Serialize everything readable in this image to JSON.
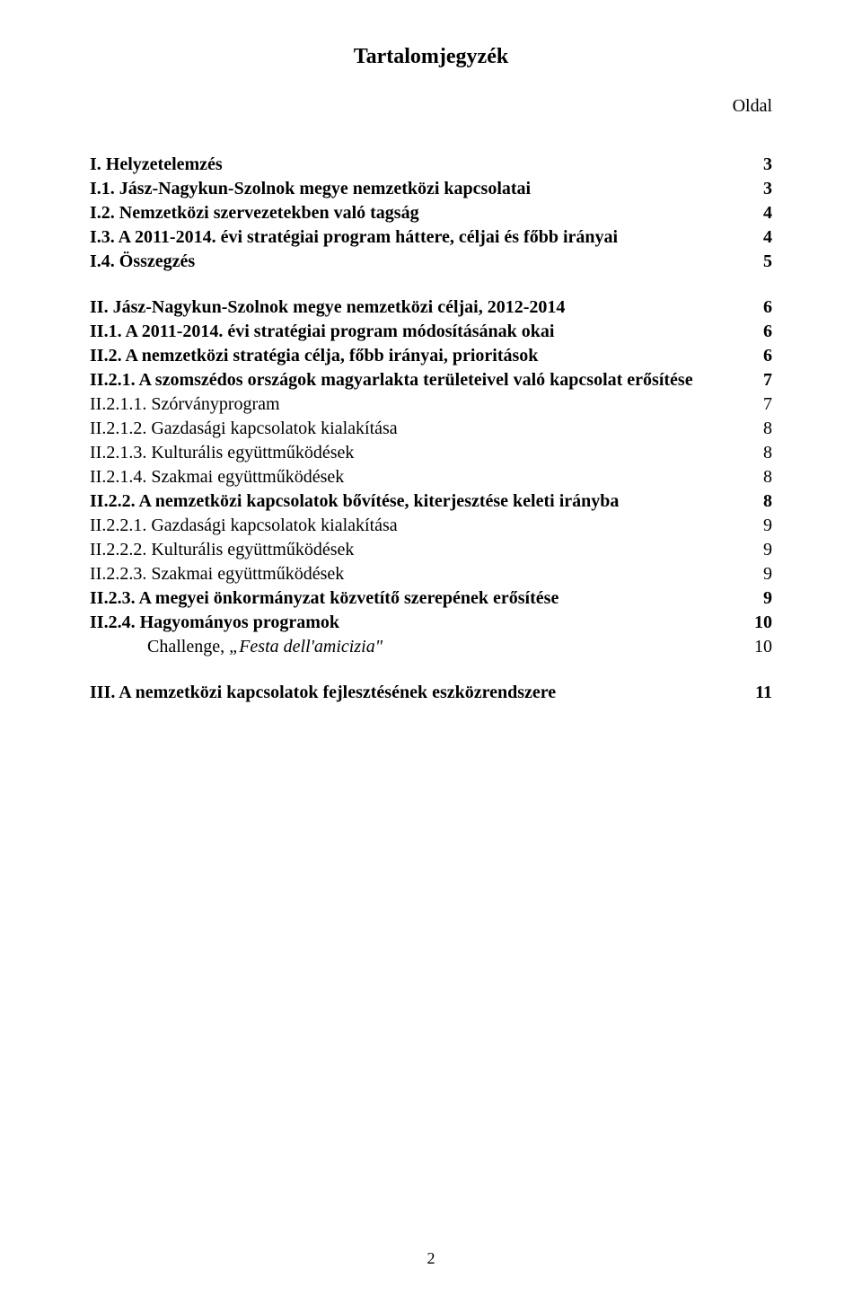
{
  "title": "Tartalomjegyzék",
  "column_header": "Oldal",
  "page_number": "2",
  "entries": [
    {
      "label": "I. Helyzetelemzés",
      "page": "3",
      "bold": true,
      "italic": false,
      "indent": 0
    },
    {
      "label": "I.1. Jász-Nagykun-Szolnok megye nemzetközi kapcsolatai",
      "page": "3",
      "bold": true,
      "italic": false,
      "indent": 0
    },
    {
      "label": "I.2. Nemzetközi szervezetekben való tagság",
      "page": "4",
      "bold": true,
      "italic": false,
      "indent": 0
    },
    {
      "label": "I.3. A 2011-2014. évi stratégiai program háttere, céljai és főbb irányai",
      "page": "4",
      "bold": true,
      "italic": false,
      "indent": 0
    },
    {
      "label": "I.4. Összegzés",
      "page": "5",
      "bold": true,
      "italic": false,
      "indent": 0
    },
    {
      "gap": true
    },
    {
      "label": "II. Jász-Nagykun-Szolnok megye nemzetközi céljai, 2012-2014",
      "page": "6",
      "bold": true,
      "italic": false,
      "indent": 0
    },
    {
      "label": "II.1. A 2011-2014. évi stratégiai program módosításának okai",
      "page": "6",
      "bold": true,
      "italic": false,
      "indent": 0
    },
    {
      "label": "II.2. A nemzetközi stratégia célja, főbb irányai, prioritások",
      "page": "6",
      "bold": true,
      "italic": false,
      "indent": 0
    },
    {
      "label": "II.2.1. A szomszédos országok magyarlakta területeivel való kapcsolat erősítése",
      "page": "7",
      "bold": true,
      "italic": false,
      "indent": 0
    },
    {
      "label": "II.2.1.1. Szórványprogram",
      "page": "7",
      "bold": false,
      "italic": false,
      "indent": 0
    },
    {
      "label": "II.2.1.2. Gazdasági kapcsolatok kialakítása",
      "page": "8",
      "bold": false,
      "italic": false,
      "indent": 0
    },
    {
      "label": "II.2.1.3. Kulturális együttműködések",
      "page": "8",
      "bold": false,
      "italic": false,
      "indent": 0
    },
    {
      "label": "II.2.1.4. Szakmai együttműködések",
      "page": "8",
      "bold": false,
      "italic": false,
      "indent": 0
    },
    {
      "label": "II.2.2. A nemzetközi kapcsolatok bővítése, kiterjesztése keleti irányba",
      "page": "8",
      "bold": true,
      "italic": false,
      "indent": 0
    },
    {
      "label": "II.2.2.1. Gazdasági kapcsolatok kialakítása",
      "page": "9",
      "bold": false,
      "italic": false,
      "indent": 0
    },
    {
      "label": "II.2.2.2. Kulturális együttműködések",
      "page": "9",
      "bold": false,
      "italic": false,
      "indent": 0
    },
    {
      "label": "II.2.2.3. Szakmai együttműködések",
      "page": "9",
      "bold": false,
      "italic": false,
      "indent": 0
    },
    {
      "label": "II.2.3. A megyei önkormányzat közvetítő szerepének erősítése",
      "page": "9",
      "bold": true,
      "italic": false,
      "indent": 0
    },
    {
      "label": "II.2.4. Hagyományos programok",
      "page": "10",
      "bold": true,
      "italic": false,
      "indent": 0
    },
    {
      "label": "Challenge, „Festa dell'amicizia\"",
      "page": "10",
      "bold": false,
      "italic": true,
      "indent": 1
    },
    {
      "gap": true
    },
    {
      "label": "III. A nemzetközi kapcsolatok fejlesztésének eszközrendszere",
      "page": "11",
      "bold": true,
      "italic": false,
      "indent": 0
    }
  ]
}
